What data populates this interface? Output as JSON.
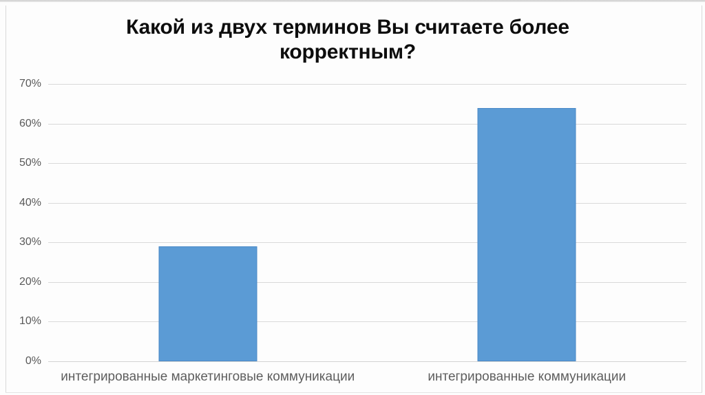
{
  "chart_data": {
    "type": "bar",
    "title": "Какой из двух терминов Вы считаете более корректным?",
    "categories": [
      "интегрированные маркетинговые коммуникации",
      "интегрированные коммуникации"
    ],
    "values": [
      29,
      64
    ],
    "value_unit": "%",
    "xlabel": "",
    "ylabel": "",
    "ylim": [
      0,
      70
    ],
    "ytick_step": 10,
    "yticks": [
      {
        "value": 0,
        "label": "0%"
      },
      {
        "value": 10,
        "label": "10%"
      },
      {
        "value": 20,
        "label": "20%"
      },
      {
        "value": 30,
        "label": "30%"
      },
      {
        "value": 40,
        "label": "40%"
      },
      {
        "value": 50,
        "label": "50%"
      },
      {
        "value": 60,
        "label": "60%"
      },
      {
        "value": 70,
        "label": "70%"
      }
    ],
    "grid": true,
    "legend": false,
    "colors": {
      "bar_fill": "#5B9BD5",
      "bar_border": "#4A89C8",
      "gridline": "#D9D9D9",
      "baseline": "#D2D2D2",
      "tick_label": "#595959",
      "category_label": "#5E5E5E",
      "title": "#0d0d0d"
    }
  }
}
